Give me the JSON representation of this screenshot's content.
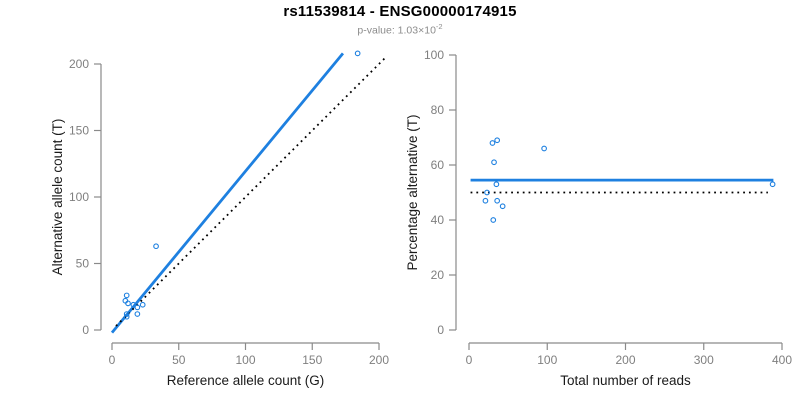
{
  "figure": {
    "title": "rs11539814 - ENSG00000174915",
    "subtitle_prefix": "p-value: 1.03×10",
    "subtitle_exponent": "-2"
  },
  "colors": {
    "accent_blue": "#1e80e0",
    "dotted_black": "#000000",
    "axis_gray": "#8a8a8a",
    "tick_label_gray": "#7f7f7f",
    "axis_title_black": "#1a1a1a",
    "subtitle_gray": "#8c8c8c"
  },
  "chart_data": [
    {
      "id": "allele-counts-scatter",
      "type": "scatter",
      "title": "",
      "xlabel": "Reference allele count (G)",
      "ylabel": "Alternative allele count (T)",
      "xlim": [
        0,
        200
      ],
      "ylim": [
        0,
        200
      ],
      "xticks": [
        0,
        50,
        100,
        150,
        200
      ],
      "yticks": [
        0,
        50,
        100,
        150,
        200
      ],
      "grid": "off",
      "legend": "none",
      "marker": "open-circle",
      "points": [
        [
          10,
          22
        ],
        [
          11,
          26
        ],
        [
          12,
          20
        ],
        [
          16,
          19
        ],
        [
          11,
          12
        ],
        [
          11,
          10
        ],
        [
          19,
          17
        ],
        [
          23,
          19
        ],
        [
          19,
          12
        ],
        [
          33,
          63
        ],
        [
          184,
          208
        ]
      ],
      "lines": [
        {
          "name": "fitted-line",
          "style": "solid",
          "color_key": "accent_blue",
          "from": [
            0,
            -2
          ],
          "to": [
            173,
            208
          ]
        },
        {
          "name": "identity-line",
          "style": "dotted",
          "color_key": "dotted_black",
          "from": [
            3,
            3
          ],
          "to": [
            206,
            206
          ]
        }
      ]
    },
    {
      "id": "percentage-vs-reads-scatter",
      "type": "scatter",
      "title": "",
      "xlabel": "Total number of reads",
      "ylabel": "Percentage alternative (T)",
      "xlim": [
        0,
        400
      ],
      "ylim": [
        0,
        100
      ],
      "xticks": [
        0,
        100,
        200,
        300,
        400
      ],
      "yticks": [
        0,
        20,
        40,
        60,
        80,
        100
      ],
      "grid": "off",
      "legend": "none",
      "marker": "open-circle",
      "points": [
        [
          30,
          68
        ],
        [
          36,
          69
        ],
        [
          96,
          66
        ],
        [
          32,
          61
        ],
        [
          35,
          53
        ],
        [
          23,
          50
        ],
        [
          21,
          47
        ],
        [
          36,
          47
        ],
        [
          43,
          45
        ],
        [
          31,
          40
        ],
        [
          388,
          53
        ]
      ],
      "lines": [
        {
          "name": "mean-percentage-line",
          "style": "solid",
          "color_key": "accent_blue",
          "from": [
            2,
            54.5
          ],
          "to": [
            389,
            54.5
          ]
        },
        {
          "name": "expected-50-percent-line",
          "style": "dotted",
          "color_key": "dotted_black",
          "from": [
            2,
            50
          ],
          "to": [
            382,
            50
          ]
        }
      ]
    }
  ]
}
